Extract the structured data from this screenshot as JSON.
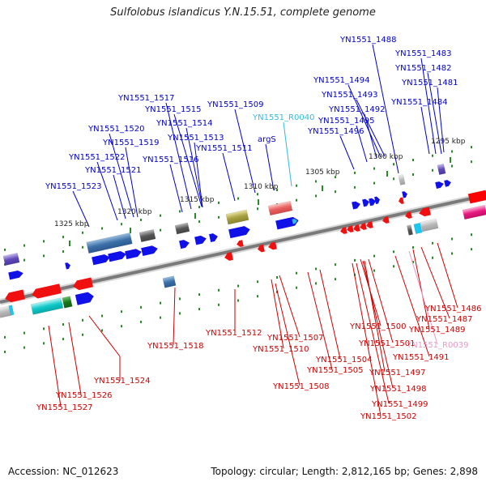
{
  "title": "Sulfolobus islandicus Y.N.15.51, complete genome",
  "footer": {
    "accession": "Accession: NC_012623",
    "summary": "Topology: circular; Length: 2,812,165 bp; Genes: 2,898"
  },
  "colors": {
    "forward_label": "#0000cc",
    "reverse_label": "#cc0000",
    "rna_forward_label": "#33bbdd",
    "rna_reverse_label": "#e89ac8",
    "backbone": "#888888",
    "tick": "#2a8a2a"
  },
  "scale_labels": [
    "1325 kbp",
    "1320 kbp",
    "1315 kbp",
    "1310 kbp",
    "1305 kbp",
    "1300 kbp",
    "1295 kbp"
  ],
  "forward_labels": [
    "YN1551_1488",
    "YN1551_1483",
    "YN1551_1482",
    "YN1551_1481",
    "YN1551_1494",
    "YN1551_1493",
    "YN1551_1492",
    "YN1551_1495",
    "YN1551_1496",
    "YN1551_1484",
    "YN1551_1517",
    "YN1551_1515",
    "YN1551_1509",
    "YN1551_1514",
    "YN1551_1520",
    "YN1551_1513",
    "YN1551_1519",
    "YN1551_1511",
    "YN1551_1522",
    "YN1551_1516",
    "YN1551_1521",
    "YN1551_1523",
    "YN1551_R0040",
    "argS"
  ],
  "reverse_labels": [
    "YN1551_1486",
    "YN1551_1487",
    "YN1551_1489",
    "YN1551_1500",
    "YN1551_R0039",
    "YN1551_1501",
    "YN1551_1491",
    "YN1551_1518",
    "YN1551_1512",
    "YN1551_1507",
    "YN1551_1510",
    "YN1551_1504",
    "YN1551_1505",
    "YN1551_1497",
    "YN1551_1498",
    "YN1551_1524",
    "YN1551_1508",
    "YN1551_1526",
    "YN1551_1527",
    "YN1551_1499",
    "YN1551_1502"
  ]
}
